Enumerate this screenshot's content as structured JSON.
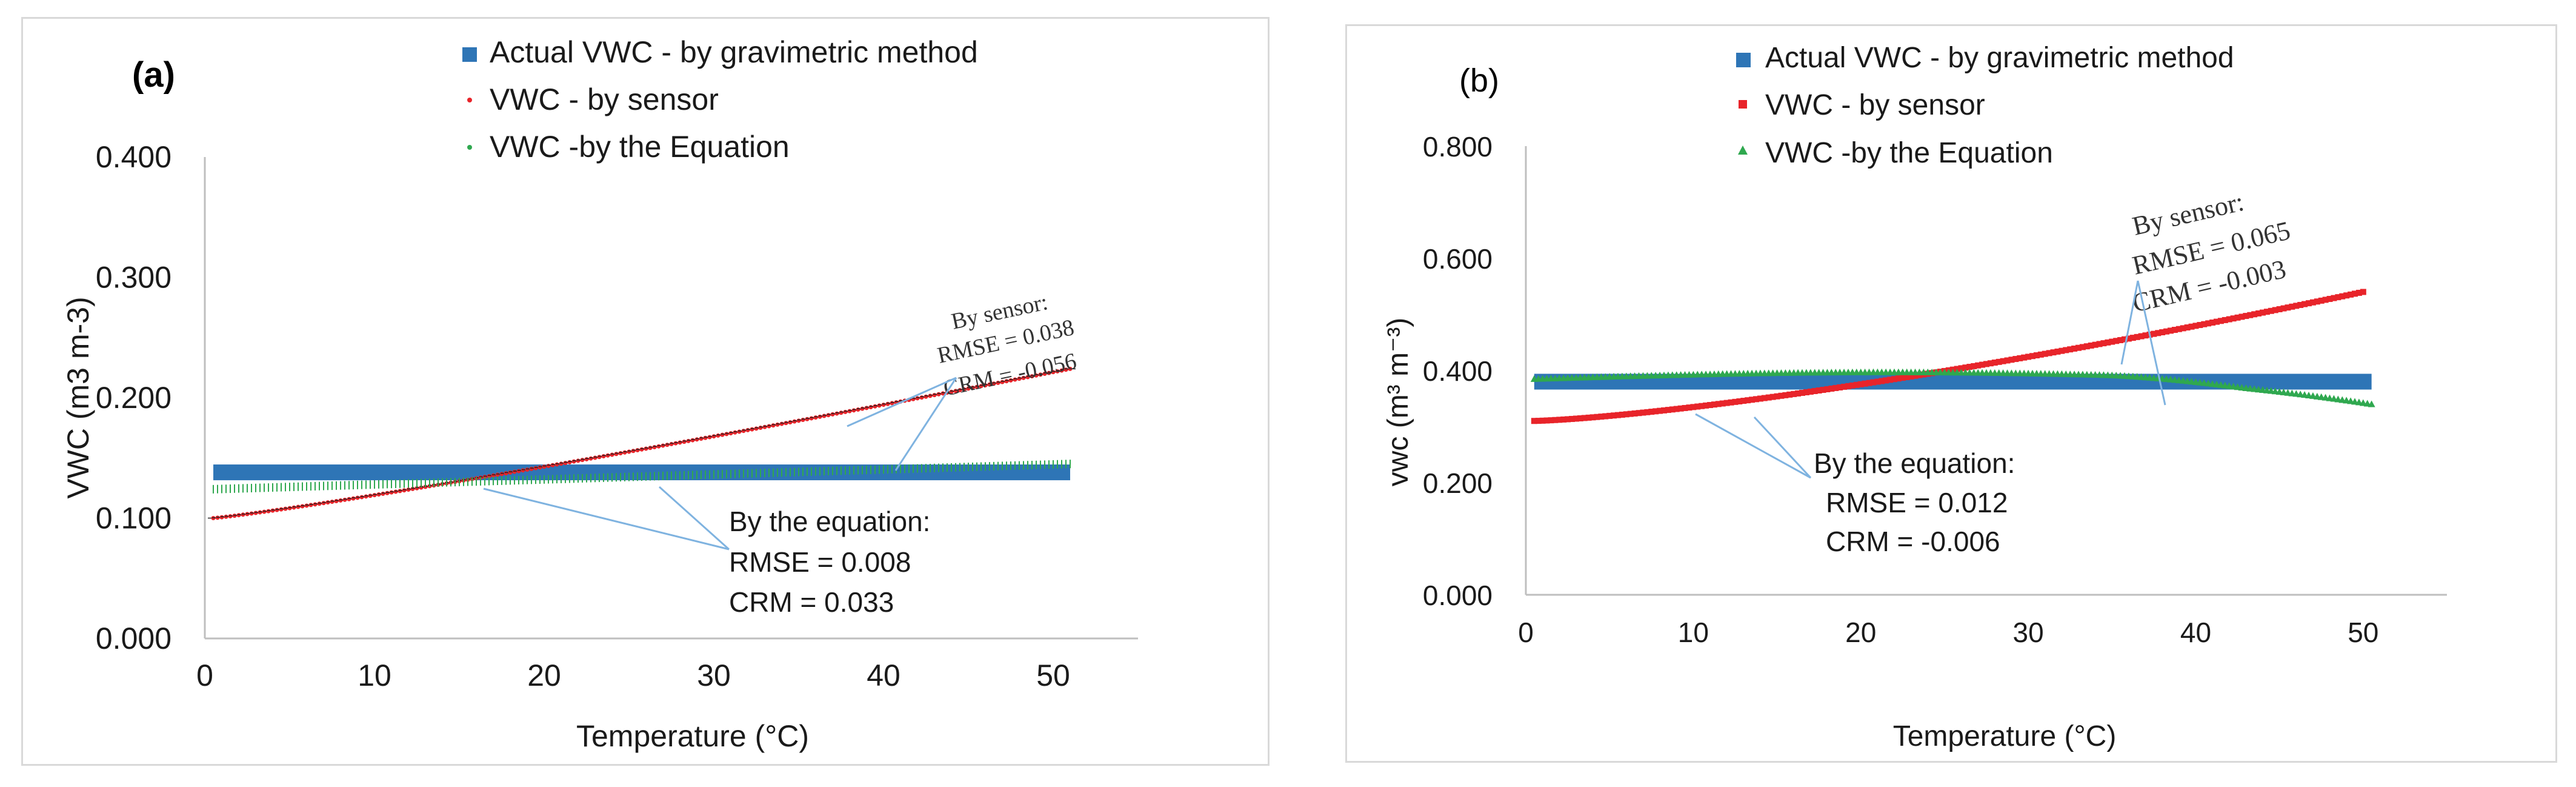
{
  "chart_data": [
    {
      "type": "scatter",
      "panel_label": "(a)",
      "xlabel": "Temperature (°C)",
      "ylabel": "VWC (m3 m-3)",
      "xlim": [
        0,
        55
      ],
      "ylim": [
        0,
        0.4
      ],
      "x_ticks": [
        0,
        10,
        20,
        30,
        40,
        50
      ],
      "y_ticks": [
        0.0,
        0.1,
        0.2,
        0.3,
        0.4
      ],
      "x_tick_labels": [
        "0",
        "10",
        "20",
        "30",
        "40",
        "50"
      ],
      "y_tick_labels": [
        "0.000",
        "0.100",
        "0.200",
        "0.300",
        "0.400"
      ],
      "legend": [
        "Actual VWC - by gravimetric method",
        "VWC - by sensor",
        "VWC -by the Equation"
      ],
      "series": [
        {
          "name": "Actual VWC - by gravimetric method",
          "color": "#2e75b6",
          "marker": "square",
          "x_start": 0.5,
          "x_end": 51,
          "x_step": 0.25,
          "y_start": 0.138,
          "y_end": 0.138
        },
        {
          "name": "VWC - by sensor",
          "color": "#e8242a",
          "marker": "dot",
          "x_start": 0.5,
          "x_end": 51,
          "x_step": 0.25,
          "y_start": 0.1,
          "y_end": 0.224,
          "curve": 1.12
        },
        {
          "name": "VWC -by the Equation",
          "color": "#2fa84f",
          "marker": "dash",
          "x_start": 0.5,
          "x_end": 51,
          "x_step": 0.25,
          "y_start": 0.124,
          "y_end": 0.145,
          "curve": 1.0
        }
      ],
      "annotations": {
        "sensor": {
          "lines": [
            "By sensor:",
            "RMSE = 0.038",
            "CRM = -0.056"
          ]
        },
        "equation": {
          "lines": [
            "By the equation:",
            "RMSE = 0.008",
            "CRM  = 0.033"
          ]
        }
      }
    },
    {
      "type": "scatter",
      "panel_label": "(b)",
      "xlabel": "Temperature (°C)",
      "ylabel": "vwc (m³ m⁻³)",
      "xlim": [
        0,
        55
      ],
      "ylim": [
        0,
        0.8
      ],
      "x_ticks": [
        0,
        10,
        20,
        30,
        40,
        50
      ],
      "y_ticks": [
        0.0,
        0.2,
        0.4,
        0.6,
        0.8
      ],
      "x_tick_labels": [
        "0",
        "10",
        "20",
        "30",
        "40",
        "50"
      ],
      "y_tick_labels": [
        "0.000",
        "0.200",
        "0.400",
        "0.600",
        "0.800"
      ],
      "legend": [
        "Actual VWC - by gravimetric method",
        "VWC - by sensor",
        "VWC -by the Equation"
      ],
      "series": [
        {
          "name": "Actual VWC - by gravimetric method",
          "color": "#2e75b6",
          "marker": "square",
          "x_start": 0.5,
          "x_end": 50.5,
          "x_step": 0.25,
          "y_start": 0.38,
          "y_end": 0.38
        },
        {
          "name": "VWC - by sensor",
          "color": "#e8242a",
          "marker": "square",
          "x_start": 0.5,
          "x_end": 50,
          "x_step": 0.25,
          "y_start": 0.31,
          "y_end": 0.54,
          "curve": 1.35
        },
        {
          "name": "VWC -by the Equation",
          "color": "#2fa84f",
          "marker": "triangle",
          "x_start": 0.5,
          "x_end": 50.5,
          "x_step": 0.25,
          "y_start": 0.385,
          "y_end": 0.34,
          "hump": true
        }
      ],
      "annotations": {
        "sensor": {
          "lines": [
            "By sensor:",
            "RMSE = 0.065",
            "CRM = -0.003"
          ]
        },
        "equation": {
          "lines": [
            "By the equation:",
            "RMSE = 0.012",
            "CRM  = -0.006"
          ]
        }
      }
    }
  ]
}
